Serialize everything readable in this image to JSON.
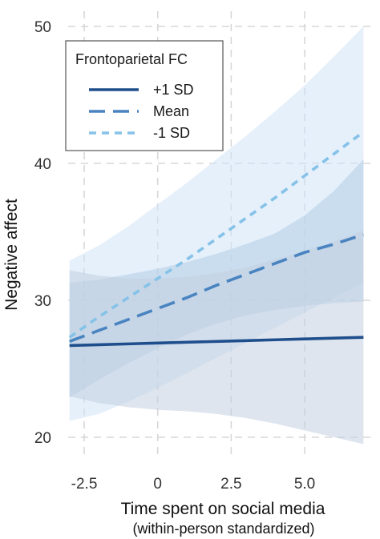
{
  "chart_data": {
    "type": "line",
    "title": "",
    "xlabel": "Time spent on social media",
    "xlabel_sub": "(within-person standardized)",
    "ylabel": "Negative affect",
    "xlim": [
      -3.3,
      7.2
    ],
    "ylim": [
      18.5,
      51.5
    ],
    "xticks": [
      -2.5,
      0,
      2.5,
      5.0
    ],
    "xtick_labels": [
      "-2.5",
      "0",
      "2.5",
      "5.0"
    ],
    "yticks": [
      20,
      30,
      40,
      50
    ],
    "ytick_labels": [
      "20",
      "30",
      "40",
      "50"
    ],
    "grid": true,
    "grid_style": "dashed",
    "legend": {
      "title": "Frontoparietal FC",
      "placement": "top-left"
    },
    "x": [
      -3,
      -2,
      -1,
      0,
      1,
      2,
      3,
      4,
      5,
      6,
      7
    ],
    "series": [
      {
        "name": "-1 SD",
        "line_style": "dotted",
        "color": "#86c2e8",
        "band_color": "#cfe4f7",
        "values": [
          27.3,
          28.8,
          30.2,
          31.6,
          33.0,
          34.5,
          36.0,
          37.5,
          39.1,
          40.7,
          42.3
        ],
        "ci_lower": [
          21.2,
          21.7,
          22.6,
          23.6,
          24.7,
          25.8,
          26.9,
          28.0,
          29.1,
          30.2,
          31.3
        ],
        "ci_upper": [
          32.9,
          34.0,
          35.4,
          37.0,
          38.6,
          40.3,
          42.0,
          43.8,
          45.7,
          47.8,
          50.0
        ]
      },
      {
        "name": "Mean",
        "line_style": "dashed",
        "color": "#4a84c0",
        "band_color": "#b5cde6",
        "values": [
          27.0,
          27.8,
          28.6,
          29.4,
          30.2,
          31.1,
          31.9,
          32.7,
          33.5,
          34.1,
          34.8
        ],
        "ci_lower": [
          22.9,
          24.2,
          25.4,
          26.5,
          27.5,
          28.3,
          28.9,
          29.3,
          29.6,
          29.8,
          29.9
        ],
        "ci_upper": [
          31.3,
          31.5,
          31.9,
          32.3,
          32.8,
          33.4,
          34.1,
          34.9,
          36.2,
          38.0,
          40.3
        ]
      },
      {
        "name": "+1 SD",
        "line_style": "solid",
        "color": "#1f4e8c",
        "band_color": "#c2cfe0",
        "values": [
          26.7,
          26.76,
          26.82,
          26.88,
          26.94,
          27.0,
          27.06,
          27.12,
          27.18,
          27.24,
          27.3
        ],
        "ci_lower": [
          23.0,
          22.5,
          22.2,
          22.0,
          21.9,
          21.7,
          21.4,
          21.0,
          20.5,
          20.0,
          19.5
        ],
        "ci_upper": [
          32.2,
          31.8,
          31.6,
          31.6,
          31.7,
          32.0,
          32.4,
          33.0,
          33.6,
          34.3,
          35.1
        ]
      }
    ]
  }
}
